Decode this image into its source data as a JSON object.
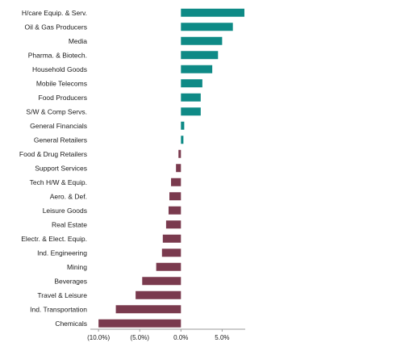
{
  "chart_data": {
    "type": "bar",
    "orientation": "horizontal",
    "categories": [
      "H/care Equip. & Serv.",
      "Oil & Gas Producers",
      "Media",
      "Pharma. & Biotech.",
      "Household Goods",
      "Mobile Telecoms",
      "Food Producers",
      "S/W & Comp Servs.",
      "General Financials",
      "General Retailers",
      "Food & Drug Retailers",
      "Support Services",
      "Tech H/W & Equip.",
      "Aero. & Def.",
      "Leisure Goods",
      "Real Estate",
      "Electr. & Elect. Equip.",
      "Ind. Engineering",
      "Mining",
      "Beverages",
      "Travel & Leisure",
      "Ind. Transportation",
      "Chemicals"
    ],
    "values": [
      7.7,
      6.3,
      5.0,
      4.5,
      3.8,
      2.6,
      2.4,
      2.4,
      0.4,
      0.3,
      -0.3,
      -0.6,
      -1.2,
      -1.4,
      -1.5,
      -1.8,
      -2.2,
      -2.3,
      -3.0,
      -4.7,
      -5.5,
      -7.9,
      -10.0
    ],
    "xlim": [
      -10.6,
      7.8
    ],
    "xticks": [
      -10,
      -5,
      0,
      5
    ],
    "xtick_labels": [
      "(10.0%)",
      "(5.0%)",
      "0.0%",
      "5.0%"
    ],
    "title": "",
    "xlabel": "",
    "ylabel": "",
    "grid": false,
    "legend": "none",
    "colors": {
      "positive": "#0e8a86",
      "negative": "#7a3a4e",
      "axis": "#999999"
    }
  }
}
